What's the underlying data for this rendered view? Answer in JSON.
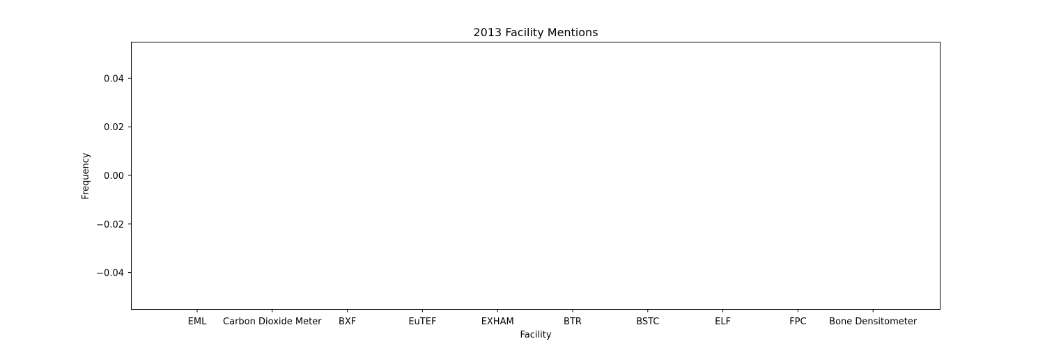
{
  "chart_data": {
    "type": "bar",
    "title": "2013 Facility Mentions",
    "xlabel": "Facility",
    "ylabel": "Frequency",
    "categories": [
      "EML",
      "Carbon Dioxide Meter",
      "BXF",
      "EuTEF",
      "EXHAM",
      "BTR",
      "BSTC",
      "ELF",
      "FPC",
      "Bone Densitometer"
    ],
    "values": [
      0,
      0,
      0,
      0,
      0,
      0,
      0,
      0,
      0,
      0
    ],
    "yticks": [
      "0.04",
      "0.02",
      "0.00",
      "−0.02",
      "−0.04"
    ],
    "ylim": [
      -0.055,
      0.055
    ],
    "grid": false,
    "colors": {
      "axis": "#000000",
      "background": "#ffffff",
      "bar": "#1f77b4"
    }
  }
}
